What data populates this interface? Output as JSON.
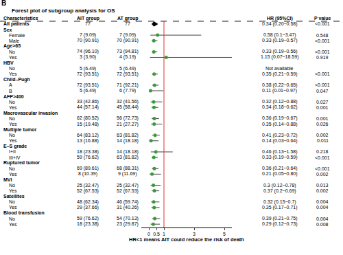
{
  "chart_data": {
    "type": "forest",
    "panel_label": "B",
    "title": "Forest plot of subgroup analysis for OS",
    "columns": [
      "Characteristics",
      "AIT group",
      "AT group",
      "HR (95%CI)",
      "P value"
    ],
    "x_label": "HR<1 means AIT could reduce the risk of death",
    "xlim": [
      -0.5,
      5.5
    ],
    "xticks": [
      0,
      0.5,
      1,
      3,
      5
    ],
    "reference_line": 1,
    "color": "#3a9a3a",
    "marker": "circle",
    "rows": [
      {
        "label": "All patients",
        "ait": "77",
        "at": "77",
        "hr": 0.34,
        "ci": [
          0.2,
          0.58
        ],
        "hr_label": "0.34 (0.20~0.58)",
        "p": "<0.001",
        "marker": "diamond",
        "color": "#000000"
      },
      {
        "label": "Sex",
        "items": [
          {
            "label": "Female",
            "ait": "7 (9.09)",
            "at": "7 (9.09)",
            "hr": 0.58,
            "ci": [
              0.1,
              3.47
            ],
            "hr_label": "0.58 (0.1~3.47)",
            "p": "0.548"
          },
          {
            "label": "Male",
            "ait": "70 (90.91)",
            "at": "70 (90.91)",
            "hr": 0.33,
            "ci": [
              0.19,
              0.57
            ],
            "hr_label": "0.33 (0.19~0.57)",
            "p": "<0.001"
          }
        ]
      },
      {
        "label": "Age>65",
        "items": [
          {
            "label": "No",
            "ait": "74 (96.10)",
            "at": "73 (94.81)",
            "hr": 0.33,
            "ci": [
              0.19,
              0.56
            ],
            "hr_label": "0.33 (0.19~0.56)",
            "p": "<0.001"
          },
          {
            "label": "Yes",
            "ait": "3 (3.90)",
            "at": "4 (5.19)",
            "hr": 1.15,
            "ci": [
              0.07,
              18.59
            ],
            "hr_label": "1.15 (0.07~18.59)",
            "p": "0.919"
          }
        ]
      },
      {
        "label": "HBV",
        "items": [
          {
            "label": "No",
            "ait": "5 (6.49)",
            "at": "5 (6.49)",
            "hr": null,
            "ci": null,
            "hr_label": "Not available",
            "p": null
          },
          {
            "label": "Yes",
            "ait": "72 (93.51)",
            "at": "72 (93.51)",
            "hr": 0.35,
            "ci": [
              0.21,
              0.59
            ],
            "hr_label": "0.35 (0.21~0.59)",
            "p": "<0.001"
          }
        ]
      },
      {
        "label": "Child–Pugh",
        "items": [
          {
            "label": "A",
            "ait": "72 (93.51)",
            "at": "71 (92.21)",
            "hr": 0.38,
            "ci": [
              0.22,
              0.65
            ],
            "hr_label": "0.38 (0.22~0.65)",
            "p": "<0.001"
          },
          {
            "label": "B",
            "ait": "5 (6.49)",
            "at": "6 (7.79)",
            "hr": 0.11,
            "ci": [
              0.01,
              0.97
            ],
            "hr_label": "0.11 (0.01~0.97)",
            "p": "0.047"
          }
        ]
      },
      {
        "label": "AFP>400",
        "items": [
          {
            "label": "No",
            "ait": "33 (42.86)",
            "at": "32 (41.56)",
            "hr": 0.32,
            "ci": [
              0.12,
              0.88
            ],
            "hr_label": "0.32 (0.12~0.88)",
            "p": "0.027"
          },
          {
            "label": "Yes",
            "ait": "44 (57.14)",
            "at": "45 (58.44)",
            "hr": 0.34,
            "ci": [
              0.18,
              0.62
            ],
            "hr_label": "0.34 (0.18~0.62)",
            "p": "0.001"
          }
        ]
      },
      {
        "label": "Macrovascular invasion",
        "items": [
          {
            "label": "No",
            "ait": "62 (80.52)",
            "at": "56 (72.73)",
            "hr": 0.36,
            "ci": [
              0.19,
              0.67
            ],
            "hr_label": "0.36 (0.19~0.67)",
            "p": "0.001"
          },
          {
            "label": "Yes",
            "ait": "15 (19.48)",
            "at": "21 (27.27)",
            "hr": 0.35,
            "ci": [
              0.14,
              0.88
            ],
            "hr_label": "0.35 (0.14~0.88)",
            "p": "0.026"
          }
        ]
      },
      {
        "label": "Multiple tumor",
        "items": [
          {
            "label": "No",
            "ait": "64 (83.12)",
            "at": "63 (81.82)",
            "hr": 0.41,
            "ci": [
              0.23,
              0.72
            ],
            "hr_label": "0.41 (0.23~0.72)",
            "p": "0.002"
          },
          {
            "label": "Yes",
            "ait": "13 (16.88)",
            "at": "14 (18.18)",
            "hr": 0.14,
            "ci": [
              0.03,
              0.64
            ],
            "hr_label": "0.14 (0.03~0.64)",
            "p": "0.011"
          }
        ]
      },
      {
        "label": "E–S grade",
        "items": [
          {
            "label": "I+II",
            "ait": "18 (23.38)",
            "at": "14 (18.18)",
            "hr": 0.46,
            "ci": [
              0.13,
              1.58
            ],
            "hr_label": "0.46 (0.13~1.58)",
            "p": "0.218"
          },
          {
            "label": "III+IV",
            "ait": "59 (76.62)",
            "at": "63 (81.82)",
            "hr": 0.33,
            "ci": [
              0.19,
              0.59
            ],
            "hr_label": "0.33 (0.19~0.59)",
            "p": "<0.001"
          }
        ]
      },
      {
        "label": "Ruptured tumor",
        "items": [
          {
            "label": "No",
            "ait": "69 (89.61)",
            "at": "68 (88.31)",
            "hr": 0.36,
            "ci": [
              0.21,
              0.64
            ],
            "hr_label": "0.36 (0.21~0.64)",
            "p": "<0.001"
          },
          {
            "label": "Yes",
            "ait": "8 (10.39)",
            "at": "9 (11.69)",
            "hr": 0.21,
            "ci": [
              0.05,
              0.8
            ],
            "hr_label": "0.21 (0.05~0.80)",
            "p": "0.002"
          }
        ]
      },
      {
        "label": "MVI",
        "items": [
          {
            "label": "No",
            "ait": "25 (32.47)",
            "at": "25 (32.47)",
            "hr": 0.3,
            "ci": [
              0.12,
              0.78
            ],
            "hr_label": "0.3 (0.12~0.78)",
            "p": "0.013"
          },
          {
            "label": "Yes",
            "ait": "52 (67.53)",
            "at": "52 (67.53)",
            "hr": 0.37,
            "ci": [
              0.2,
              0.69
            ],
            "hr_label": "0.37 (0.2~0.69)",
            "p": "0.002"
          }
        ]
      },
      {
        "label": "Satellites",
        "items": [
          {
            "label": "No",
            "ait": "48 (62.34)",
            "at": "46 (59.74)",
            "hr": 0.32,
            "ci": [
              0.15,
              0.7
            ],
            "hr_label": "0.32 (0.15~0.7)",
            "p": "0.004"
          },
          {
            "label": "Yes",
            "ait": "29 (37.66)",
            "at": "31 (40.26)",
            "hr": 0.35,
            "ci": [
              0.17,
              0.71
            ],
            "hr_label": "0.35 (0.17~0.71)",
            "p": "0.004"
          }
        ]
      },
      {
        "label": "Blood transfusion",
        "items": [
          {
            "label": "No",
            "ait": "59 (76.62)",
            "at": "54 (70.13)",
            "hr": 0.39,
            "ci": [
              0.21,
              0.75
            ],
            "hr_label": "0.39 (0.21~0.75)",
            "p": "0.004"
          },
          {
            "label": "Yes",
            "ait": "18 (23.38)",
            "at": "23 (29.87)",
            "hr": 0.29,
            "ci": [
              0.12,
              0.73
            ],
            "hr_label": "0.29 (0.12~0.73)",
            "p": "0.008"
          }
        ]
      }
    ]
  }
}
